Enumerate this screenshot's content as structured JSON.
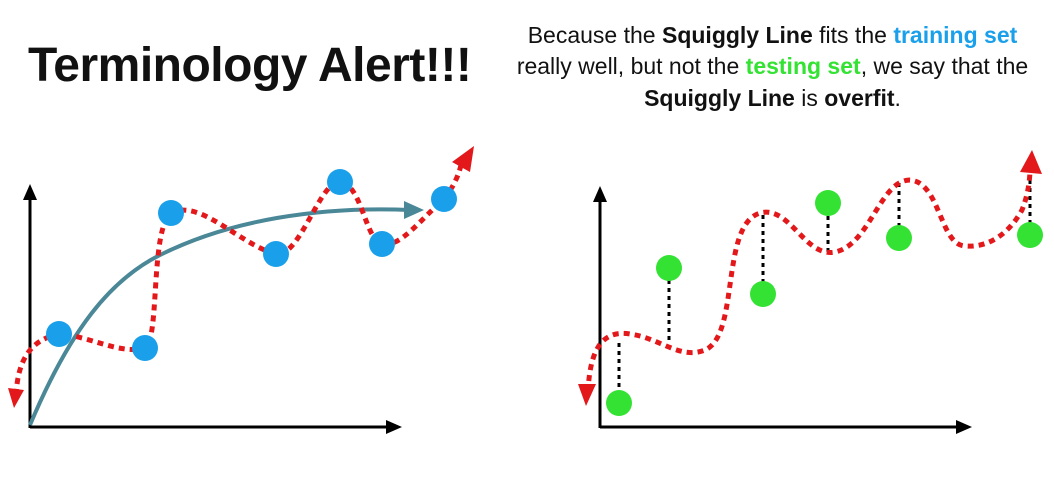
{
  "title": "Terminology Alert!!!",
  "caption": {
    "p1": "Because the ",
    "squiggly_1": "Squiggly Line",
    "p2": " fits the ",
    "training_set": "training set",
    "p3": " really well, but not the ",
    "testing_set": "testing set",
    "p4": ", we say that the ",
    "squiggly_2": "Squiggly Line",
    "p5": " is ",
    "overfit": "overfit",
    "p6": "."
  },
  "colors": {
    "training": "#1aa0ea",
    "testing": "#33e233",
    "squiggle": "#e3181b",
    "curve": "#4a8797",
    "axis": "#000000"
  }
}
